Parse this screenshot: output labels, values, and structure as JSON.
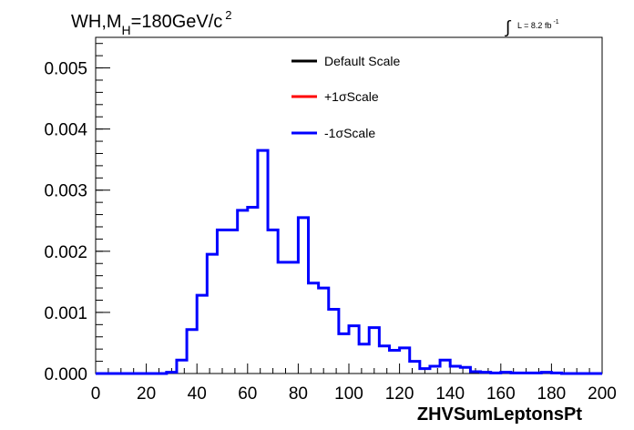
{
  "chart_data": {
    "type": "step-histogram",
    "title": {
      "prefix": "WH,M",
      "subscript": "H",
      "value": "=180GeV/c",
      "superscript": "2"
    },
    "lumi": {
      "integral_symbol": "∫",
      "text": "L = 8.2 fb",
      "superscript": "-1"
    },
    "xlabel": "ZHVSumLeptonsPt",
    "ylabel": "",
    "xlim": [
      0,
      200
    ],
    "ylim": [
      0,
      0.0055
    ],
    "x_ticks": [
      "0",
      "20",
      "40",
      "60",
      "80",
      "100",
      "120",
      "140",
      "160",
      "180",
      "200"
    ],
    "y_ticks": [
      "0.000",
      "0.001",
      "0.002",
      "0.003",
      "0.004",
      "0.005"
    ],
    "bin_width": 4,
    "bin_edges_start": 0,
    "legend": {
      "placement": "top-center",
      "entries": [
        {
          "label": "Default Scale",
          "color": "#000000"
        },
        {
          "label": "+1σScale",
          "color": "#ff0000"
        },
        {
          "label": "-1σScale",
          "color": "#0000ff"
        }
      ]
    },
    "series": [
      {
        "name": "-1σScale",
        "color": "#0000ff",
        "values": [
          0,
          0,
          0,
          0,
          0,
          0,
          0,
          2e-05,
          0.00022,
          0.00072,
          0.00128,
          0.00195,
          0.00235,
          0.00235,
          0.00267,
          0.00272,
          0.00365,
          0.00235,
          0.00182,
          0.00182,
          0.00255,
          0.00148,
          0.0014,
          0.00105,
          0.00065,
          0.00078,
          0.00048,
          0.00075,
          0.00045,
          0.00038,
          0.00042,
          0.0002,
          8e-05,
          0.00012,
          0.00022,
          0.00012,
          0.0001,
          3e-05,
          2e-05,
          1e-05,
          2e-05,
          1e-05,
          1e-05,
          1e-05,
          2e-05,
          1e-05,
          0,
          0,
          0,
          0
        ]
      }
    ]
  }
}
